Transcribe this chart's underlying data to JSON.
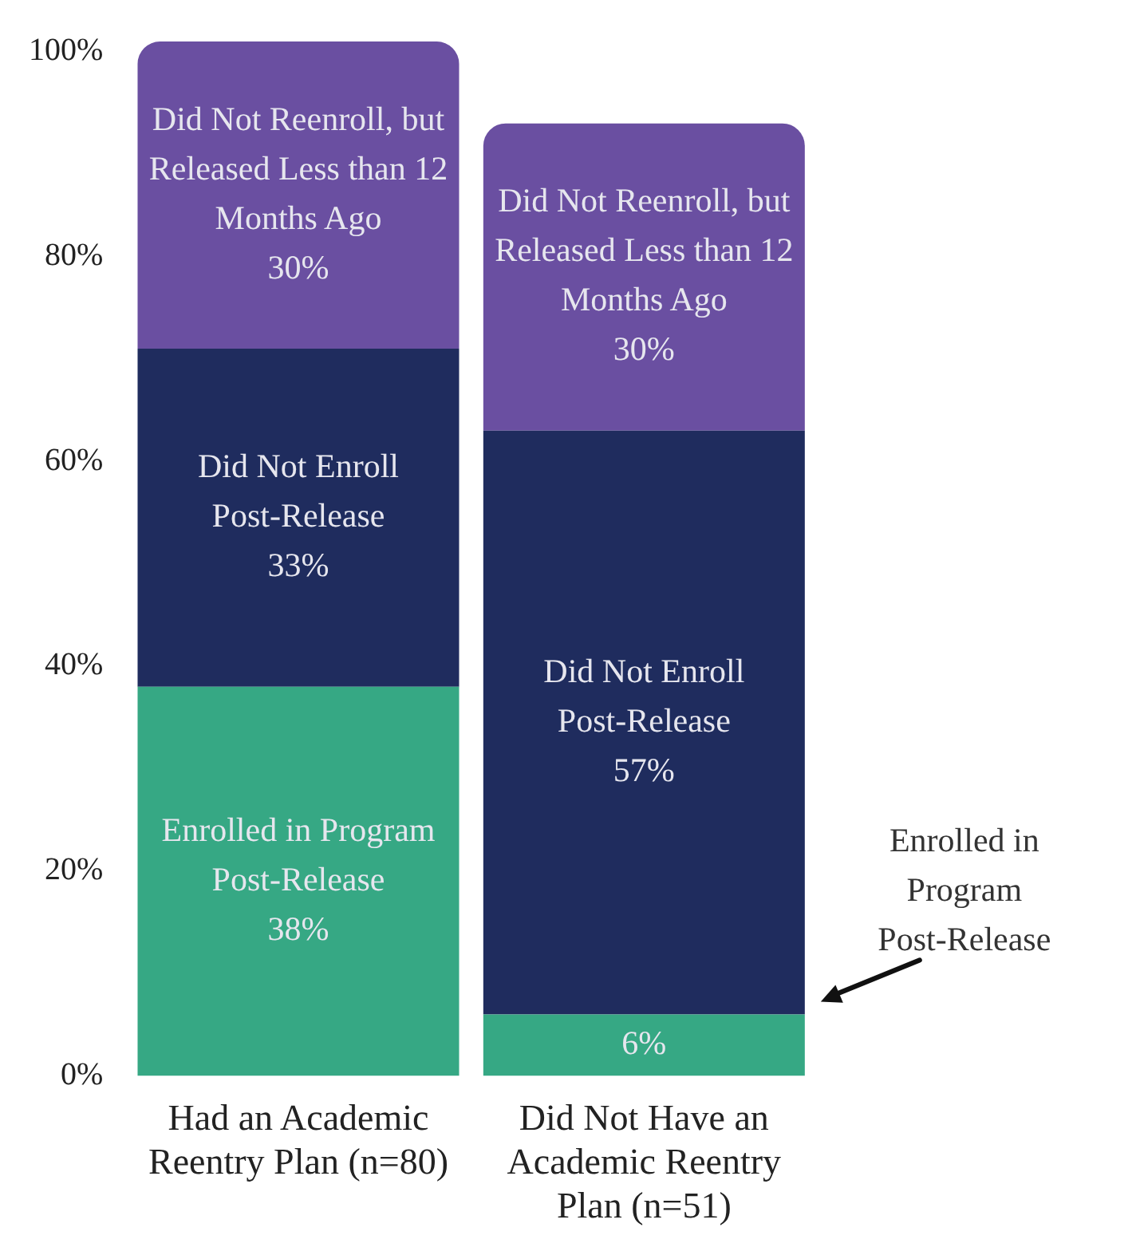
{
  "chart_data": {
    "type": "bar",
    "stacked": true,
    "categories": [
      "Had an Academic Reentry Plan (n=80)",
      "Did Not Have an Academic Reentry Plan (n=51)"
    ],
    "series": [
      {
        "name": "Enrolled in Program Post-Release",
        "color": "#36a884",
        "values": [
          38,
          6
        ],
        "value_labels": [
          "38%",
          "6%"
        ]
      },
      {
        "name": "Did Not Enroll Post-Release",
        "color": "#1f2c5e",
        "values": [
          33,
          57
        ],
        "value_labels": [
          "33%",
          "57%"
        ]
      },
      {
        "name": "Did Not Reenroll, but Released Less than 12 Months Ago",
        "color": "#6a4fa1",
        "values": [
          30,
          30
        ],
        "value_labels": [
          "30%",
          "30%"
        ]
      }
    ],
    "ylim": [
      0,
      101
    ],
    "yticks": [
      {
        "value": 0,
        "label": "0%"
      },
      {
        "value": 20,
        "label": "20%"
      },
      {
        "value": 40,
        "label": "40%"
      },
      {
        "value": 60,
        "label": "60%"
      },
      {
        "value": 80,
        "label": "80%"
      },
      {
        "value": 100,
        "label": "100%"
      }
    ],
    "grid": false,
    "legend": false
  }
}
